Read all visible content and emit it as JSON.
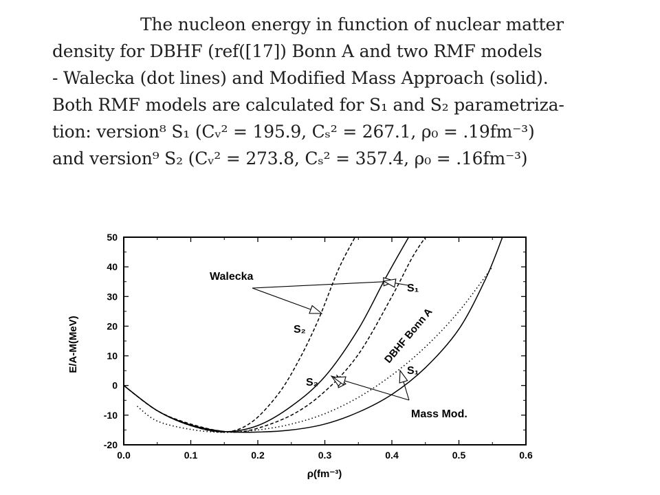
{
  "caption": {
    "lines": [
      "The nucleon energy in function of nuclear matter",
      "density for DBHF (ref([17]) Bonn A and two RMF models",
      "- Walecka (dot lines) and Modified Mass Approach (solid).",
      "Both RMF models are calculated for S₁ and S₂ parametriza-",
      "tion: version⁸ S₁ (Cᵥ² = 195.9, Cₛ² = 267.1, ρ₀ = .19fm⁻³)",
      "and version⁹ S₂ (Cᵥ² = 273.8, Cₛ² = 357.4, ρ₀ = .16fm⁻³)"
    ]
  },
  "chart_data": {
    "type": "line",
    "xlabel": "ρ(fm⁻³)",
    "ylabel": "E/A-M(MeV)",
    "xlim": [
      0.0,
      0.6
    ],
    "ylim": [
      -20,
      50
    ],
    "xticks": [
      0.0,
      0.1,
      0.2,
      0.3,
      0.4,
      0.5,
      0.6
    ],
    "xtick_labels": [
      "0.0",
      "0.1",
      "0.2",
      "0.3",
      "0.4",
      "0.5",
      "0.6"
    ],
    "yticks": [
      -20,
      -10,
      0,
      10,
      20,
      30,
      40,
      50
    ],
    "ytick_labels": [
      "-20",
      "-10",
      "0",
      "10",
      "20",
      "30",
      "40",
      "50"
    ],
    "grid": false,
    "series": [
      {
        "style": "dashed",
        "x": [
          0.0,
          0.05,
          0.1,
          0.15,
          0.19,
          0.23,
          0.26,
          0.29,
          0.32,
          0.345
        ],
        "y": [
          0.0,
          -8.5,
          -13.5,
          -15.7,
          -12.5,
          -3.0,
          8.0,
          22.0,
          39.0,
          50.0
        ]
      },
      {
        "style": "dashed",
        "x": [
          0.0,
          0.05,
          0.1,
          0.15,
          0.19,
          0.25,
          0.3,
          0.35,
          0.4,
          0.43,
          0.45
        ],
        "y": [
          0.0,
          -8.5,
          -13.0,
          -15.5,
          -15.0,
          -10.0,
          -2.0,
          10.5,
          30.0,
          43.0,
          50.0
        ]
      },
      {
        "style": "solid",
        "x": [
          0.0,
          0.05,
          0.1,
          0.15,
          0.2,
          0.25,
          0.3,
          0.35,
          0.39,
          0.425
        ],
        "y": [
          0.0,
          -8.5,
          -13.5,
          -15.6,
          -13.5,
          -7.0,
          3.0,
          19.0,
          36.0,
          50.0
        ]
      },
      {
        "style": "solid",
        "x": [
          0.0,
          0.05,
          0.1,
          0.15,
          0.2,
          0.25,
          0.3,
          0.35,
          0.4,
          0.45,
          0.5,
          0.54,
          0.565
        ],
        "y": [
          0.0,
          -8.5,
          -13.3,
          -15.5,
          -15.7,
          -15.0,
          -13.0,
          -9.0,
          -3.0,
          6.0,
          19.0,
          36.0,
          50.0
        ]
      },
      {
        "name": "DBHF Bonn A",
        "style": "dotted",
        "x": [
          0.02,
          0.05,
          0.1,
          0.15,
          0.2,
          0.25,
          0.3,
          0.35,
          0.4,
          0.45,
          0.5,
          0.55
        ],
        "y": [
          -7.0,
          -12.0,
          -14.8,
          -15.8,
          -15.0,
          -13.0,
          -9.5,
          -4.0,
          3.5,
          13.0,
          25.0,
          40.0
        ]
      }
    ],
    "annotations": {
      "walecka": "Walecka",
      "s1_upper": "S₁",
      "s2_upper": "S₂",
      "s2_lower": "S₂",
      "s1_lower": "S₁",
      "mass_mod": "Mass Mod.",
      "dbhf": "DBHF Bonn A"
    }
  }
}
